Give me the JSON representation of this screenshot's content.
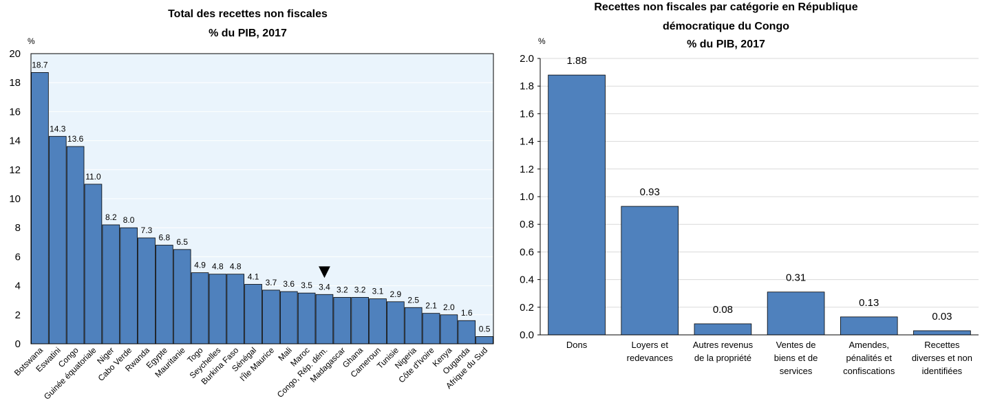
{
  "chart_data": [
    {
      "type": "bar",
      "title_lines": [
        "Total des recettes non fiscales",
        "% du PIB, 2017"
      ],
      "unit": "%",
      "ylim": [
        0,
        20
      ],
      "yticks": [
        0,
        2,
        4,
        6,
        8,
        10,
        12,
        14,
        16,
        18,
        20
      ],
      "grid": true,
      "plot_bg": "#eaf4fc",
      "bar_color": "#4f81bd",
      "marker_symbol": "▼",
      "marker_category": "Congo, Rép. dém.",
      "categories": [
        "Botswana",
        "Eswatini",
        "Congo",
        "Guinée équatoriale",
        "Niger",
        "Cabo Verde",
        "Rwanda",
        "Egypte",
        "Mauritanie",
        "Togo",
        "Seychelles",
        "Burkina Faso",
        "Sénégal",
        "l'Île Maurice",
        "Mali",
        "Maroc",
        "Congo, Rép. dém.",
        "Madagascar",
        "Ghana",
        "Cameroun",
        "Tunisie",
        "Nigeria",
        "Côte d'Ivoire",
        "Kenya",
        "Ouganda",
        "Afrique du Sud"
      ],
      "values": [
        18.7,
        14.3,
        13.6,
        11.0,
        8.2,
        8.0,
        7.3,
        6.8,
        6.5,
        4.9,
        4.8,
        4.8,
        4.1,
        3.7,
        3.6,
        3.5,
        3.4,
        3.2,
        3.2,
        3.1,
        2.9,
        2.5,
        2.1,
        2.0,
        1.6,
        0.5
      ],
      "value_labels": [
        "18.7",
        "14.3",
        "13.6",
        "11.0",
        "8.2",
        "8.0",
        "7.3",
        "6.8",
        "6.5",
        "4.9",
        "4.8",
        "4.8",
        "4.1",
        "3.7",
        "3.6",
        "3.5",
        "3.4",
        "3.2",
        "3.2",
        "3.1",
        "2.9",
        "2.5",
        "2.1",
        "2.0",
        "1.6",
        "0.5"
      ]
    },
    {
      "type": "bar",
      "title_lines": [
        "Recettes non fiscales par catégorie en République",
        "démocratique du Congo",
        "% du PIB, 2017"
      ],
      "unit": "%",
      "ylim": [
        0,
        2.0
      ],
      "yticks": [
        0.0,
        0.2,
        0.4,
        0.6,
        0.8,
        1.0,
        1.2,
        1.4,
        1.6,
        1.8,
        2.0
      ],
      "ytick_labels": [
        "0.0",
        "0.2",
        "0.4",
        "0.6",
        "0.8",
        "1.0",
        "1.2",
        "1.4",
        "1.6",
        "1.8",
        "2.0"
      ],
      "grid": true,
      "plot_bg": "#ffffff",
      "grid_color": "#d9d9d9",
      "bar_color": "#4f81bd",
      "categories": [
        [
          "Dons"
        ],
        [
          "Loyers et",
          "redevances"
        ],
        [
          "Autres revenus",
          "de la propriété"
        ],
        [
          "Ventes de",
          "biens et de",
          "services"
        ],
        [
          "Amendes,",
          "pénalités et",
          "confiscations"
        ],
        [
          "Recettes",
          "diverses et non",
          "identifiées"
        ]
      ],
      "values": [
        1.88,
        0.93,
        0.08,
        0.31,
        0.13,
        0.03
      ],
      "value_labels": [
        "1.88",
        "0.93",
        "0.08",
        "0.31",
        "0.13",
        "0.03"
      ]
    }
  ]
}
